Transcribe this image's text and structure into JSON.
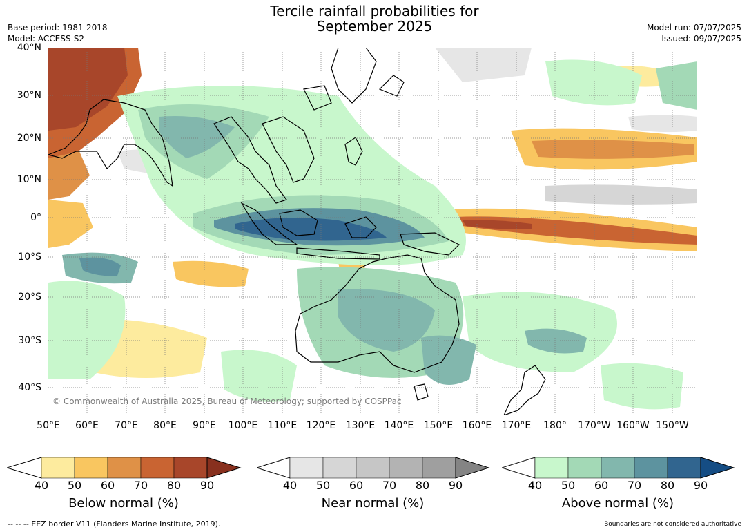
{
  "title_line1": "Tercile rainfall probabilities for",
  "title_line2": "September 2025",
  "meta_left": [
    "Base period: 1981-2018",
    "Model: ACCESS-S2"
  ],
  "meta_right": [
    "Model run: 07/07/2025",
    "Issued: 09/07/2025"
  ],
  "lat_labels": [
    "40°N",
    "30°N",
    "20°N",
    "10°N",
    "0°",
    "10°S",
    "20°S",
    "30°S",
    "40°S"
  ],
  "lon_labels": [
    "50°E",
    "60°E",
    "70°E",
    "80°E",
    "90°E",
    "100°E",
    "110°E",
    "120°E",
    "130°E",
    "140°E",
    "150°E",
    "160°E",
    "170°E",
    "180°",
    "170°W",
    "160°W",
    "150°W"
  ],
  "copyright": "© Commonwealth of Australia 2025, Bureau of Meteorology; supported by COSPPac",
  "colorbars": [
    {
      "title": "Below normal (%)",
      "ticks": [
        "40",
        "50",
        "60",
        "70",
        "80",
        "90"
      ],
      "colors": [
        "#fdeb9e",
        "#f9c660",
        "#df9147",
        "#c96432",
        "#a8462a",
        "#88301e"
      ]
    },
    {
      "title": "Near normal (%)",
      "ticks": [
        "40",
        "50",
        "60",
        "70",
        "80",
        "90"
      ],
      "colors": [
        "#e6e6e6",
        "#d6d6d6",
        "#c6c6c6",
        "#b3b3b3",
        "#9f9f9f",
        "#848484"
      ]
    },
    {
      "title": "Above normal (%)",
      "ticks": [
        "40",
        "50",
        "60",
        "70",
        "80",
        "90"
      ],
      "colors": [
        "#c8f7cc",
        "#a3d9b6",
        "#82b7ad",
        "#5d939f",
        "#31658f",
        "#154d84"
      ]
    }
  ],
  "footer_left": "--  --  -- EEZ border V11 (Flanders Marine Institute, 2019).",
  "footer_right": "Boundaries are not considered authoritative"
}
